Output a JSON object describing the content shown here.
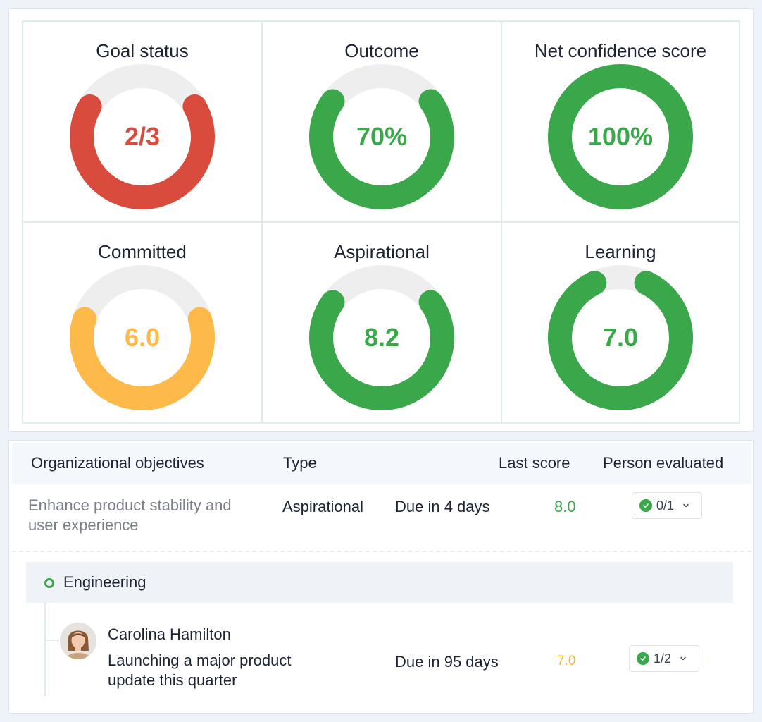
{
  "metrics": [
    {
      "title": "Goal status",
      "value": "2/3",
      "fraction": 0.667,
      "color": "#d94b3c"
    },
    {
      "title": "Outcome",
      "value": "70%",
      "fraction": 0.7,
      "color": "#3aa74a"
    },
    {
      "title": "Net confidence score",
      "value": "100%",
      "fraction": 1.0,
      "color": "#3aa74a"
    },
    {
      "title": "Committed",
      "value": "6.0",
      "fraction": 0.6,
      "color": "#fdb94a"
    },
    {
      "title": "Aspirational",
      "value": "8.2",
      "fraction": 0.7,
      "color": "#3aa74a"
    },
    {
      "title": "Learning",
      "value": "7.0",
      "fraction": 0.86,
      "color": "#3aa74a"
    }
  ],
  "track_color": "#eeeeee",
  "table": {
    "headers": {
      "objectives": "Organizational objectives",
      "type": "Type",
      "last_score": "Last score",
      "person_evaluated": "Person evaluated"
    },
    "row": {
      "objective": "Enhance product stability and user experience",
      "type": "Aspirational",
      "due": "Due in 4 days",
      "score": "8.0",
      "evaluated": "0/1"
    },
    "group": {
      "name": "Engineering",
      "person": {
        "name": "Carolina Hamilton",
        "goal": "Launching a major product update this quarter",
        "due": "Due in 95 days",
        "score": "7.0",
        "evaluated": "1/2"
      }
    }
  }
}
